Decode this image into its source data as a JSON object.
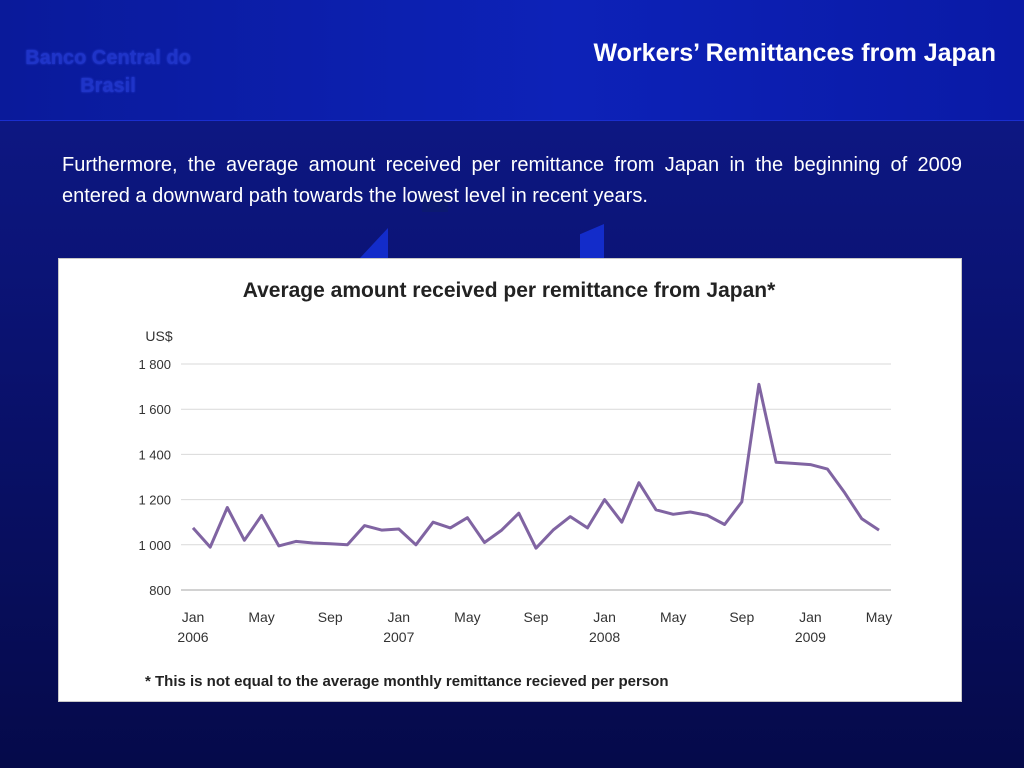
{
  "header": {
    "logo": "Banco Central do Brasil",
    "title": "Workers’ Remittances from Japan"
  },
  "body_text": "Furthermore, the average amount received per remittance from Japan in the beginning of 2009 entered a downward path towards the lowest level in recent years.",
  "colors": {
    "series": "#8064a2",
    "grid": "#d9d9d9"
  },
  "chart_data": {
    "type": "line",
    "title": "Average amount received per remittance from Japan*",
    "ylabel": "US$",
    "ylim": [
      800,
      1800
    ],
    "yticks": [
      800,
      1000,
      1200,
      1400,
      1600,
      1800
    ],
    "ytick_labels": [
      "800",
      "1 000",
      "1 200",
      "1 400",
      "1 600",
      "1 800"
    ],
    "xtick_labels": [
      {
        "index": 0,
        "month": "Jan",
        "year": "2006"
      },
      {
        "index": 4,
        "month": "May",
        "year": ""
      },
      {
        "index": 8,
        "month": "Sep",
        "year": ""
      },
      {
        "index": 12,
        "month": "Jan",
        "year": "2007"
      },
      {
        "index": 16,
        "month": "May",
        "year": ""
      },
      {
        "index": 20,
        "month": "Sep",
        "year": ""
      },
      {
        "index": 24,
        "month": "Jan",
        "year": "2008"
      },
      {
        "index": 28,
        "month": "May",
        "year": ""
      },
      {
        "index": 32,
        "month": "Sep",
        "year": ""
      },
      {
        "index": 36,
        "month": "Jan",
        "year": "2009"
      },
      {
        "index": 40,
        "month": "May",
        "year": ""
      }
    ],
    "x_start": "2006-01",
    "x_end": "2009-05",
    "series": [
      {
        "values": [
          1075,
          990,
          1165,
          1020,
          1130,
          995,
          1015,
          1008,
          1005,
          1000,
          1085,
          1065,
          1070,
          1000,
          1100,
          1075,
          1120,
          1010,
          1065,
          1140,
          985,
          1065,
          1125,
          1075,
          1200,
          1100,
          1275,
          1155,
          1135,
          1145,
          1130,
          1090,
          1190,
          1710,
          1365,
          1360,
          1355,
          1335,
          1230,
          1115,
          1065
        ]
      }
    ],
    "grid": "horizontal",
    "footnote": "* This is not equal to the average monthly remittance recieved per person"
  }
}
